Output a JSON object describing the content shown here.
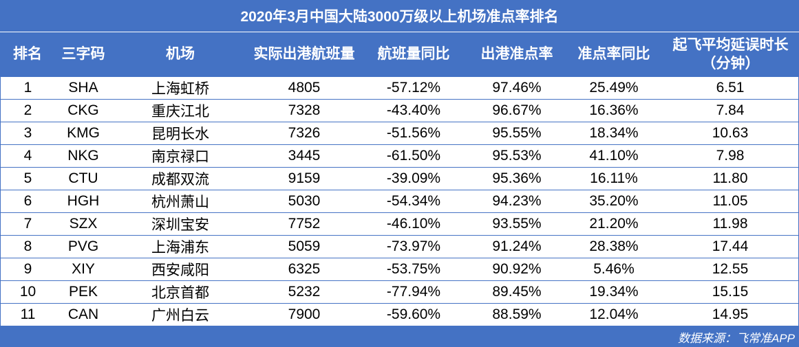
{
  "chart_data": {
    "type": "table",
    "title": "2020年3月中国大陆3000万级以上机场准点率排名",
    "columns": [
      "排名",
      "三字码",
      "机场",
      "实际出港航班量",
      "航班量同比",
      "出港准点率",
      "准点率同比",
      "起飞平均延误时长\n（分钟）"
    ],
    "rows": [
      [
        "1",
        "SHA",
        "上海虹桥",
        "4805",
        "-57.12%",
        "97.46%",
        "25.49%",
        "6.51"
      ],
      [
        "2",
        "CKG",
        "重庆江北",
        "7328",
        "-43.40%",
        "96.67%",
        "16.36%",
        "7.84"
      ],
      [
        "3",
        "KMG",
        "昆明长水",
        "7326",
        "-51.56%",
        "95.55%",
        "18.34%",
        "10.63"
      ],
      [
        "4",
        "NKG",
        "南京禄口",
        "3445",
        "-61.50%",
        "95.53%",
        "41.10%",
        "7.98"
      ],
      [
        "5",
        "CTU",
        "成都双流",
        "9159",
        "-39.09%",
        "95.36%",
        "16.11%",
        "11.80"
      ],
      [
        "6",
        "HGH",
        "杭州萧山",
        "5030",
        "-54.34%",
        "94.23%",
        "35.20%",
        "11.05"
      ],
      [
        "7",
        "SZX",
        "深圳宝安",
        "7752",
        "-46.10%",
        "93.55%",
        "21.20%",
        "11.98"
      ],
      [
        "8",
        "PVG",
        "上海浦东",
        "5059",
        "-73.97%",
        "91.24%",
        "28.38%",
        "17.44"
      ],
      [
        "9",
        "XIY",
        "西安咸阳",
        "6325",
        "-53.75%",
        "90.92%",
        "5.46%",
        "12.55"
      ],
      [
        "10",
        "PEK",
        "北京首都",
        "5232",
        "-77.94%",
        "89.45%",
        "19.34%",
        "15.15"
      ],
      [
        "11",
        "CAN",
        "广州白云",
        "7900",
        "-59.60%",
        "88.59%",
        "12.04%",
        "14.95"
      ]
    ]
  },
  "footer": {
    "source": "数据来源：飞常准APP"
  },
  "colors": {
    "accent": "#4472c4",
    "header_text": "#ffffff",
    "body_bg": "#ffffff"
  }
}
